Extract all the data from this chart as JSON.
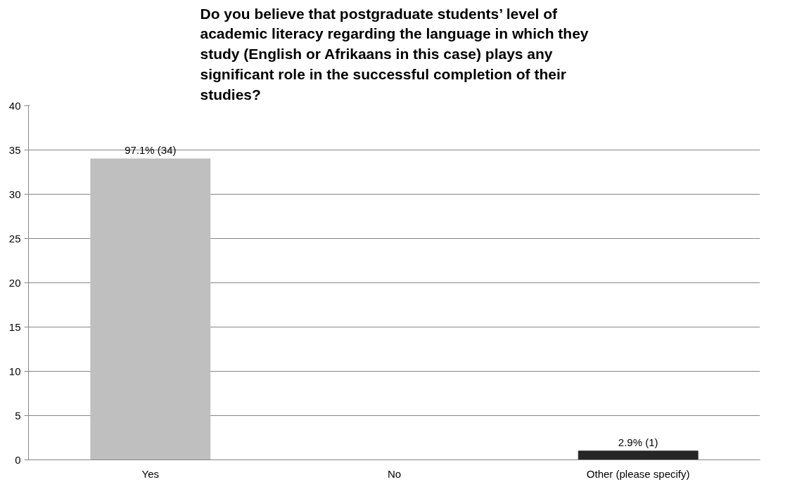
{
  "chart_data": {
    "type": "bar",
    "title": "Do you believe that postgraduate students’ level of academic literacy regarding the language in which they study (English or Afrikaans in this case) plays any significant role in the successful completion of their studies?",
    "categories": [
      "Yes",
      "No",
      "Other (please specify)"
    ],
    "values": [
      34,
      0,
      1
    ],
    "colors": [
      "#bfbfbf",
      "#7f7f7f",
      "#262626"
    ],
    "value_labels": [
      "97.1% (34)",
      null,
      "2.9% (1)"
    ],
    "ylim": [
      0,
      40
    ],
    "yticks": [
      0,
      5,
      10,
      15,
      20,
      25,
      30,
      35,
      40
    ],
    "grid": "y"
  }
}
